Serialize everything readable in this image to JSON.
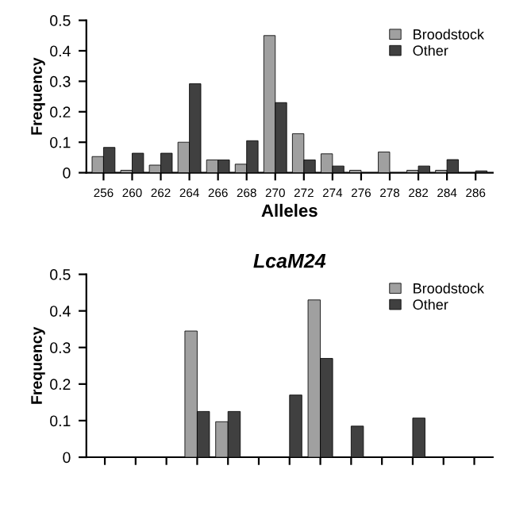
{
  "chart_data": [
    {
      "type": "bar",
      "xlabel": "Alleles",
      "ylabel": "Frequency",
      "categories": [
        "256",
        "260",
        "262",
        "264",
        "266",
        "268",
        "270",
        "272",
        "274",
        "276",
        "278",
        "282",
        "284",
        "286"
      ],
      "series": [
        {
          "name": "Broodstock",
          "color": "#a0a0a0",
          "values": [
            0.053,
            0.008,
            0.025,
            0.1,
            0.042,
            0.028,
            0.45,
            0.128,
            0.062,
            0.008,
            0.068,
            0.008,
            0.008,
            null
          ]
        },
        {
          "name": "Other",
          "color": "#404040",
          "values": [
            0.083,
            0.064,
            0.064,
            0.292,
            0.042,
            0.105,
            0.23,
            0.042,
            0.022,
            null,
            null,
            0.022,
            0.043,
            0.006
          ]
        }
      ],
      "ylim": [
        0,
        0.5
      ],
      "yticks": [
        0,
        0.1,
        0.2,
        0.3,
        0.4,
        0.5
      ],
      "legend": "top right",
      "grid": false
    },
    {
      "type": "bar",
      "title": "LcaM24",
      "ylabel": "Frequency",
      "categories": [
        null,
        null,
        null,
        null,
        null,
        null,
        null,
        null,
        null,
        null,
        null,
        null,
        null
      ],
      "series": [
        {
          "name": "Broodstock",
          "color": "#a0a0a0",
          "values": [
            null,
            null,
            null,
            0.345,
            0.097,
            null,
            null,
            0.43,
            null,
            null,
            null,
            null,
            null
          ]
        },
        {
          "name": "Other",
          "color": "#404040",
          "values": [
            null,
            null,
            null,
            0.125,
            0.125,
            null,
            0.17,
            0.27,
            0.085,
            null,
            0.107,
            null,
            null
          ]
        }
      ],
      "ylim": [
        0,
        0.5
      ],
      "yticks": [
        0,
        0.1,
        0.2,
        0.3,
        0.4,
        0.5
      ],
      "legend": "top right",
      "grid": false
    }
  ]
}
